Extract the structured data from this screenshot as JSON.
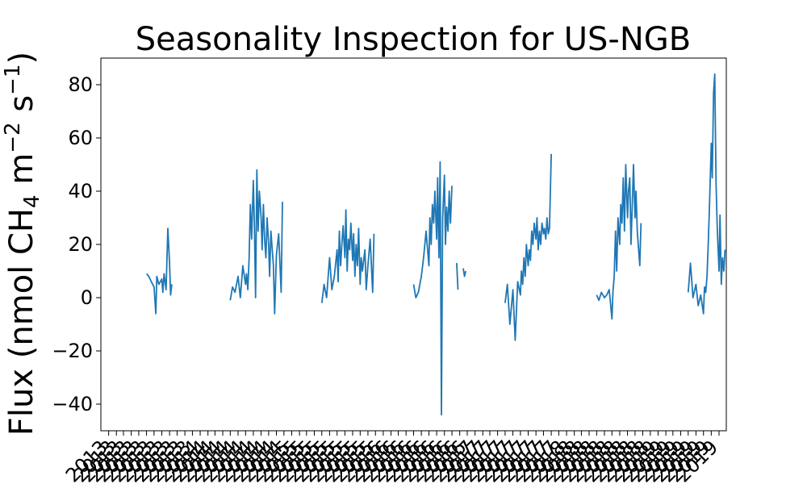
{
  "chart_data": {
    "type": "line",
    "title": "Seasonality Inspection for US-NGB",
    "xlabel": "",
    "ylabel_parts": {
      "pre": "Flux (nmol CH",
      "sub": "4",
      "mid": " m",
      "sup1": "−2",
      "mid2": " s",
      "sup2": "−1",
      "post": ")"
    },
    "ylim": [
      -50,
      90
    ],
    "yticks": [
      -40,
      -20,
      0,
      20,
      40,
      60,
      80
    ],
    "ytick_labels": [
      "−40",
      "−20",
      "0",
      "20",
      "40",
      "60",
      "80"
    ],
    "xlim": [
      "2012-12-01",
      "2019-09-30"
    ],
    "xtick_labels": [
      "2013",
      "2014",
      "2015",
      "2016",
      "2017",
      "2018",
      "2019"
    ],
    "grid": false,
    "color": "#1f77b4",
    "segments": [
      {
        "x": [
          "2013-06-01",
          "2013-06-10",
          "2013-06-20",
          "2013-07-01",
          "2013-07-08",
          "2013-07-12",
          "2013-07-20",
          "2013-08-01",
          "2013-08-05",
          "2013-08-10",
          "2013-08-18",
          "2013-08-25",
          "2013-09-01",
          "2013-09-05",
          "2013-09-10"
        ],
        "y": [
          9,
          8,
          6,
          4,
          -6,
          8,
          5,
          7,
          2,
          9,
          3,
          26,
          13,
          1,
          5
        ]
      },
      {
        "x": [
          "2014-05-01",
          "2014-05-10",
          "2014-05-20",
          "2014-06-01",
          "2014-06-10",
          "2014-06-20",
          "2014-07-01",
          "2014-07-05",
          "2014-07-10",
          "2014-07-15",
          "2014-07-20",
          "2014-07-25",
          "2014-08-01",
          "2014-08-05",
          "2014-08-10",
          "2014-08-15",
          "2014-08-20",
          "2014-08-25",
          "2014-09-01",
          "2014-09-05",
          "2014-09-10",
          "2014-09-15",
          "2014-09-20",
          "2014-09-25",
          "2014-10-01",
          "2014-10-05",
          "2014-10-10",
          "2014-10-20",
          "2014-10-25",
          "2014-11-01",
          "2014-11-10",
          "2014-11-20",
          "2014-11-25"
        ],
        "y": [
          -1,
          4,
          2,
          8,
          0,
          12,
          5,
          9,
          3,
          15,
          35,
          22,
          44,
          28,
          0,
          48,
          25,
          40,
          30,
          18,
          35,
          22,
          15,
          30,
          20,
          8,
          25,
          12,
          -6,
          16,
          24,
          2,
          36
        ]
      },
      {
        "x": [
          "2015-05-01",
          "2015-05-10",
          "2015-05-20",
          "2015-06-01",
          "2015-06-10",
          "2015-06-20",
          "2015-07-01",
          "2015-07-05",
          "2015-07-10",
          "2015-07-15",
          "2015-07-20",
          "2015-07-25",
          "2015-08-01",
          "2015-08-05",
          "2015-08-10",
          "2015-08-15",
          "2015-08-20",
          "2015-08-25",
          "2015-09-01",
          "2015-09-05",
          "2015-09-10",
          "2015-09-15",
          "2015-09-20",
          "2015-09-25",
          "2015-10-01",
          "2015-10-05",
          "2015-10-10",
          "2015-10-20",
          "2015-10-25",
          "2015-11-01",
          "2015-11-10",
          "2015-11-20",
          "2015-11-25"
        ],
        "y": [
          -2,
          5,
          0,
          15,
          3,
          8,
          18,
          6,
          25,
          12,
          20,
          27,
          15,
          33,
          10,
          22,
          18,
          28,
          14,
          24,
          8,
          20,
          12,
          26,
          5,
          15,
          10,
          18,
          3,
          12,
          22,
          2,
          24
        ]
      },
      {
        "x": [
          "2016-05-01",
          "2016-05-10",
          "2016-05-20",
          "2016-06-01",
          "2016-06-10",
          "2016-06-20",
          "2016-07-01",
          "2016-07-05",
          "2016-07-10",
          "2016-07-15",
          "2016-07-20",
          "2016-07-25",
          "2016-08-01",
          "2016-08-05",
          "2016-08-10",
          "2016-08-15",
          "2016-08-20",
          "2016-08-25",
          "2016-09-01",
          "2016-09-05",
          "2016-09-10",
          "2016-09-15",
          "2016-09-20",
          "2016-09-25",
          "2016-10-01"
        ],
        "y": [
          5,
          0,
          2,
          8,
          15,
          25,
          12,
          30,
          20,
          35,
          28,
          40,
          22,
          45,
          15,
          51,
          -44,
          30,
          46,
          20,
          34,
          25,
          40,
          28,
          42
        ]
      },
      {
        "x": [
          "2016-10-20",
          "2016-10-25"
        ],
        "y": [
          13,
          3
        ]
      },
      {
        "x": [
          "2016-11-15",
          "2016-11-20",
          "2016-11-25"
        ],
        "y": [
          11,
          8,
          10
        ]
      },
      {
        "x": [
          "2017-05-01",
          "2017-05-10",
          "2017-05-20",
          "2017-06-01",
          "2017-06-10",
          "2017-06-20",
          "2017-07-01",
          "2017-07-05",
          "2017-07-10",
          "2017-07-15",
          "2017-07-20",
          "2017-07-25",
          "2017-08-01",
          "2017-08-05",
          "2017-08-10",
          "2017-08-15",
          "2017-08-20",
          "2017-08-25",
          "2017-09-01",
          "2017-09-05",
          "2017-09-10",
          "2017-09-15",
          "2017-09-20",
          "2017-09-25",
          "2017-10-01",
          "2017-10-05",
          "2017-10-10",
          "2017-10-15",
          "2017-10-20",
          "2017-10-25",
          "2017-11-01"
        ],
        "y": [
          -2,
          5,
          -10,
          3,
          -16,
          6,
          1,
          10,
          5,
          15,
          8,
          20,
          12,
          18,
          14,
          25,
          20,
          28,
          22,
          30,
          18,
          25,
          20,
          28,
          24,
          26,
          22,
          30,
          24,
          26,
          54
        ]
      },
      {
        "x": [
          "2018-05-01",
          "2018-05-10",
          "2018-05-20",
          "2018-06-01",
          "2018-06-10",
          "2018-06-20",
          "2018-07-01",
          "2018-07-05",
          "2018-07-10",
          "2018-07-15",
          "2018-07-20",
          "2018-07-25",
          "2018-08-01",
          "2018-08-05",
          "2018-08-10",
          "2018-08-15",
          "2018-08-20",
          "2018-08-25",
          "2018-09-01",
          "2018-09-05",
          "2018-09-10",
          "2018-09-15",
          "2018-09-20",
          "2018-09-25",
          "2018-10-01",
          "2018-10-05",
          "2018-10-10",
          "2018-10-20",
          "2018-10-25"
        ],
        "y": [
          1,
          -1,
          2,
          0,
          1,
          3,
          -8,
          2,
          8,
          25,
          10,
          30,
          20,
          35,
          28,
          45,
          25,
          50,
          30,
          40,
          45,
          20,
          35,
          50,
          30,
          40,
          25,
          12,
          28
        ]
      },
      {
        "x": [
          "2019-05-01",
          "2019-05-10",
          "2019-05-20",
          "2019-06-01",
          "2019-06-10",
          "2019-06-20",
          "2019-07-01",
          "2019-07-05",
          "2019-07-10",
          "2019-07-15",
          "2019-07-20",
          "2019-07-25",
          "2019-08-01",
          "2019-08-05",
          "2019-08-10",
          "2019-08-15",
          "2019-08-20",
          "2019-08-25",
          "2019-09-01",
          "2019-09-05",
          "2019-09-10",
          "2019-09-15",
          "2019-09-20",
          "2019-09-25"
        ],
        "y": [
          2,
          13,
          0,
          5,
          -3,
          1,
          -6,
          4,
          2,
          8,
          20,
          35,
          58,
          45,
          77,
          84,
          43,
          26,
          10,
          31,
          5,
          15,
          10,
          18
        ]
      }
    ]
  }
}
